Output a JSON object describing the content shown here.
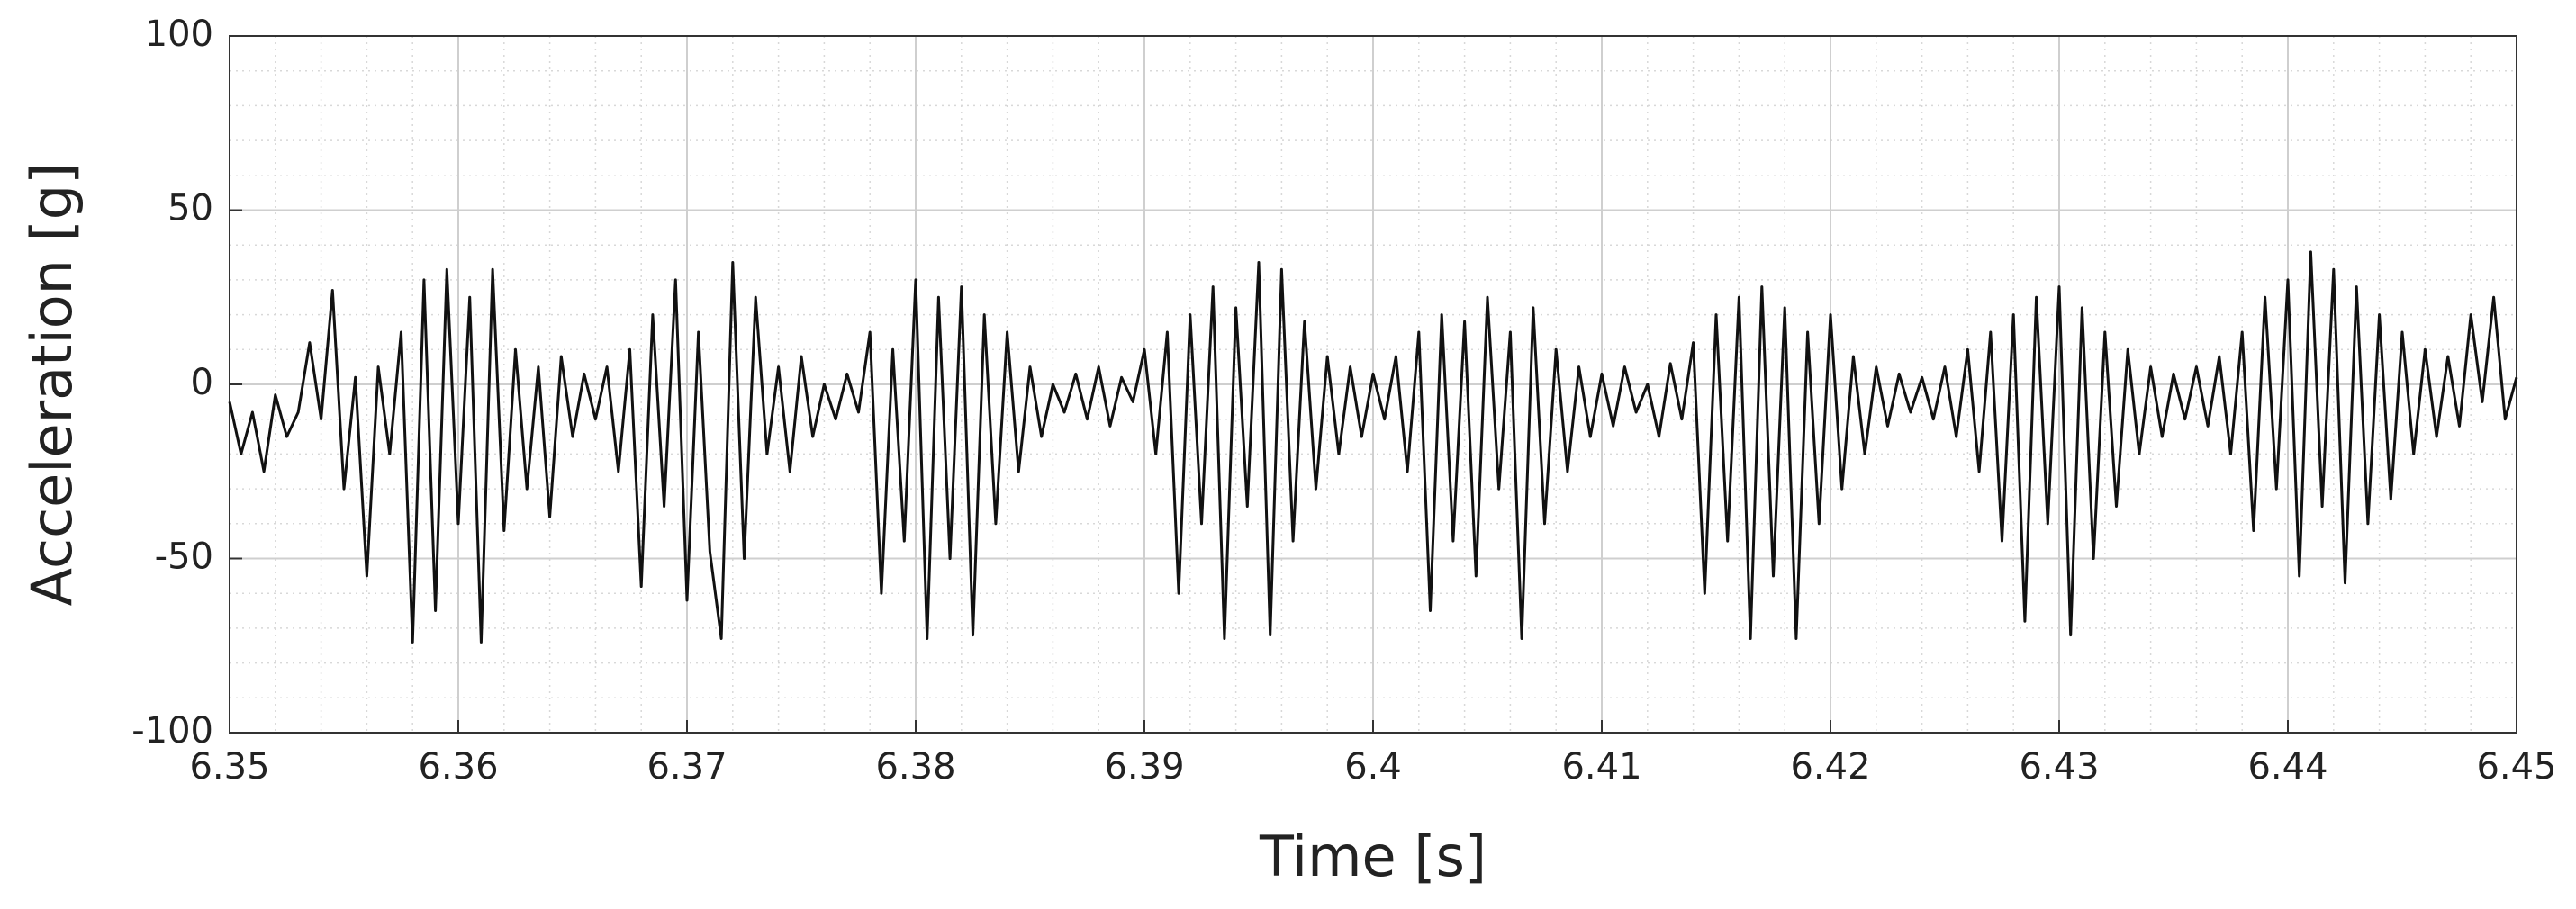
{
  "chart_data": {
    "type": "line",
    "xlabel": "Time [s]",
    "ylabel": "Acceleration [g]",
    "x": [
      6.35,
      6.3505,
      6.351,
      6.3515,
      6.352,
      6.3525,
      6.353,
      6.3535,
      6.354,
      6.3545,
      6.355,
      6.3555,
      6.356,
      6.3565,
      6.357,
      6.3575,
      6.358,
      6.3585,
      6.359,
      6.3595,
      6.36,
      6.3605,
      6.361,
      6.3615,
      6.362,
      6.3625,
      6.363,
      6.3635,
      6.364,
      6.3645,
      6.365,
      6.3655,
      6.366,
      6.3665,
      6.367,
      6.3675,
      6.368,
      6.3685,
      6.369,
      6.3695,
      6.37,
      6.3705,
      6.371,
      6.3715,
      6.372,
      6.3725,
      6.373,
      6.3735,
      6.374,
      6.3745,
      6.375,
      6.3755,
      6.376,
      6.3765,
      6.377,
      6.3775,
      6.378,
      6.3785,
      6.379,
      6.3795,
      6.38,
      6.3805,
      6.381,
      6.3815,
      6.382,
      6.3825,
      6.383,
      6.3835,
      6.384,
      6.3845,
      6.385,
      6.3855,
      6.386,
      6.3865,
      6.387,
      6.3875,
      6.388,
      6.3885,
      6.389,
      6.3895,
      6.39,
      6.3905,
      6.391,
      6.3915,
      6.392,
      6.3925,
      6.393,
      6.3935,
      6.394,
      6.3945,
      6.395,
      6.3955,
      6.396,
      6.3965,
      6.397,
      6.3975,
      6.398,
      6.3985,
      6.399,
      6.3995,
      6.4,
      6.4005,
      6.401,
      6.4015,
      6.402,
      6.4025,
      6.403,
      6.4035,
      6.404,
      6.4045,
      6.405,
      6.4055,
      6.406,
      6.4065,
      6.407,
      6.4075,
      6.408,
      6.4085,
      6.409,
      6.4095,
      6.41,
      6.4105,
      6.411,
      6.4115,
      6.412,
      6.4125,
      6.413,
      6.4135,
      6.414,
      6.4145,
      6.415,
      6.4155,
      6.416,
      6.4165,
      6.417,
      6.4175,
      6.418,
      6.4185,
      6.419,
      6.4195,
      6.42,
      6.4205,
      6.421,
      6.4215,
      6.422,
      6.4225,
      6.423,
      6.4235,
      6.424,
      6.4245,
      6.425,
      6.4255,
      6.426,
      6.4265,
      6.427,
      6.4275,
      6.428,
      6.4285,
      6.429,
      6.4295,
      6.43,
      6.4305,
      6.431,
      6.4315,
      6.432,
      6.4325,
      6.433,
      6.4335,
      6.434,
      6.4345,
      6.435,
      6.4355,
      6.436,
      6.4365,
      6.437,
      6.4375,
      6.438,
      6.4385,
      6.439,
      6.4395,
      6.44,
      6.4405,
      6.441,
      6.4415,
      6.442,
      6.4425,
      6.443,
      6.4435,
      6.444,
      6.4445,
      6.445,
      6.4455,
      6.446,
      6.4465,
      6.447,
      6.4475,
      6.448,
      6.4485,
      6.449,
      6.4495,
      6.45
    ],
    "series": [
      {
        "color": "#111111",
        "values": [
          -5,
          -20,
          -8,
          -25,
          -3,
          -15,
          -8,
          12,
          -10,
          27,
          -30,
          2,
          -55,
          5,
          -20,
          15,
          -74,
          30,
          -65,
          33,
          -40,
          25,
          -74,
          33,
          -42,
          10,
          -30,
          5,
          -38,
          8,
          -15,
          3,
          -10,
          5,
          -25,
          10,
          -58,
          20,
          -35,
          30,
          -62,
          15,
          -48,
          -73,
          35,
          -50,
          25,
          -20,
          5,
          -25,
          8,
          -15,
          0,
          -10,
          3,
          -8,
          15,
          -60,
          10,
          -45,
          30,
          -73,
          25,
          -50,
          28,
          -72,
          20,
          -40,
          15,
          -25,
          5,
          -15,
          0,
          -8,
          3,
          -10,
          5,
          -12,
          2,
          -5,
          10,
          -20,
          15,
          -60,
          20,
          -40,
          28,
          -73,
          22,
          -35,
          35,
          -72,
          33,
          -45,
          18,
          -30,
          8,
          -20,
          5,
          -15,
          3,
          -10,
          8,
          -25,
          15,
          -65,
          20,
          -45,
          18,
          -55,
          25,
          -30,
          15,
          -73,
          22,
          -40,
          10,
          -25,
          5,
          -15,
          3,
          -12,
          5,
          -8,
          0,
          -15,
          6,
          -10,
          12,
          -60,
          20,
          -45,
          25,
          -73,
          28,
          -55,
          22,
          -73,
          15,
          -40,
          20,
          -30,
          8,
          -20,
          5,
          -12,
          3,
          -8,
          2,
          -10,
          5,
          -15,
          10,
          -25,
          15,
          -45,
          20,
          -68,
          25,
          -40,
          28,
          -72,
          22,
          -50,
          15,
          -35,
          10,
          -20,
          5,
          -15,
          3,
          -10,
          5,
          -12,
          8,
          -20,
          15,
          -42,
          25,
          -30,
          30,
          -55,
          38,
          -35,
          33,
          -57,
          28,
          -40,
          20,
          -33,
          15,
          -20,
          10,
          -15,
          8,
          -12,
          20,
          -5,
          25,
          -10,
          2
        ]
      }
    ],
    "xlim": [
      6.35,
      6.45
    ],
    "xticks": [
      6.35,
      6.36,
      6.37,
      6.38,
      6.39,
      6.4,
      6.41,
      6.42,
      6.43,
      6.44,
      6.45
    ],
    "ylim": [
      -100,
      100
    ],
    "yticks": [
      -100,
      -50,
      0,
      50,
      100
    ],
    "grid": true,
    "minor_grid": true
  }
}
